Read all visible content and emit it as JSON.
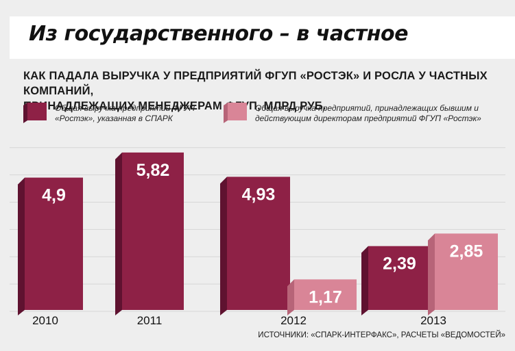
{
  "title": "Из государственного – в частное",
  "subtitle_lines": [
    "КАК ПАДАЛА ВЫРУЧКА У ПРЕДПРИЯТИЙ ФГУП «РОСТЭК» И РОСЛА У ЧАСТНЫХ КОМПАНИЙ,",
    "ПРИНАДЛЕЖАЩИХ МЕНЕДЖЕРАМ ФГУП,  МЛРД РУБ."
  ],
  "source": "ИСТОЧНИКИ: «СПАРК-ИНТЕРФАКС», РАСЧЕТЫ «ВЕДОМОСТЕЙ»",
  "colors": {
    "state": "#8e2146",
    "state_dark": "#5f1230",
    "private": "#d98597",
    "private_dark": "#b76478",
    "background": "#eeeeee",
    "grid": "#d6d6d6"
  },
  "chart_data": {
    "type": "bar",
    "categories": [
      "2010",
      "2011",
      "2012",
      "2013"
    ],
    "series": [
      {
        "name": "Общая выручка предприятий ФГУП «Ростэк», указанная в СПАРК",
        "legend_lines": [
          "Общая выручка предприятий ФГУП",
          "«Ростэк», указанная в СПАРК"
        ],
        "values": [
          4.9,
          5.82,
          4.93,
          2.39
        ],
        "labels": [
          "4,9",
          "5,82",
          "4,93",
          "2,39"
        ]
      },
      {
        "name": "Общая выручка предприятий, принадлежащих бывшим и действующим директорам предприятий ФГУП «Ростэк»",
        "legend_lines": [
          "Общая выручка предприятий, принадлежащих бывшим и",
          "действующим директорам предприятий ФГУП «Ростэк»"
        ],
        "values": [
          null,
          null,
          1.17,
          2.85
        ],
        "labels": [
          null,
          null,
          "1,17",
          "2,85"
        ]
      }
    ],
    "ylim": [
      0,
      6.3
    ],
    "grid": true,
    "legend_position": "top"
  }
}
